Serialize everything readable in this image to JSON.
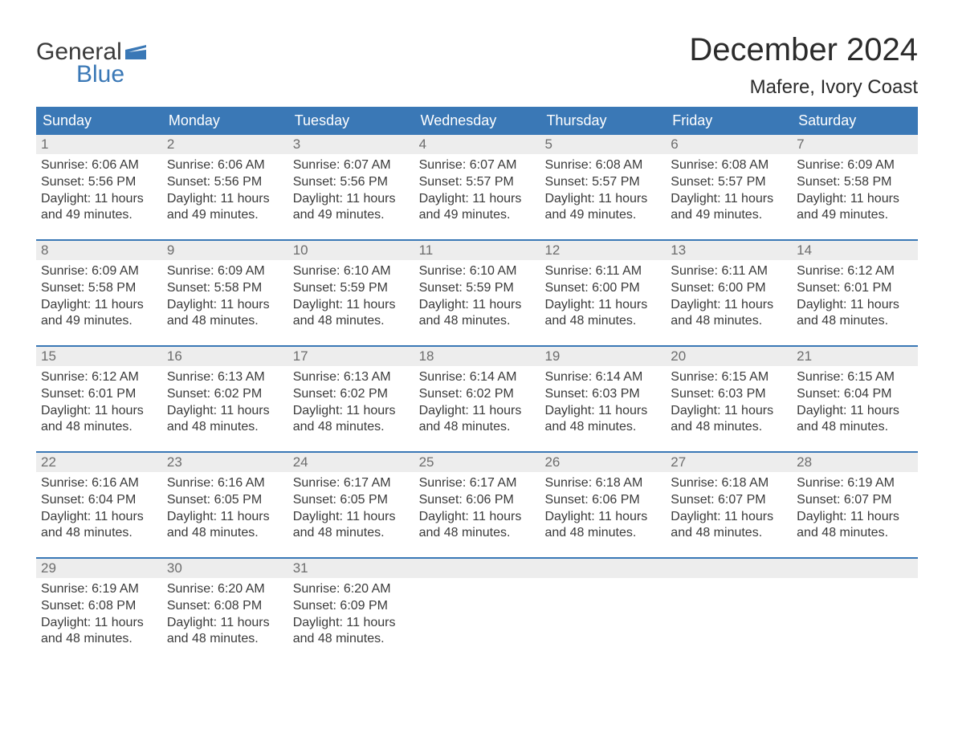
{
  "logo": {
    "word1": "General",
    "word2": "Blue",
    "flag_color": "#3a78b6",
    "text_gray": "#3a3a3a"
  },
  "title": "December 2024",
  "location": "Mafere, Ivory Coast",
  "colors": {
    "header_bg": "#3a78b6",
    "header_text": "#ffffff",
    "daynum_bg": "#ededed",
    "daynum_text": "#6d6d6d",
    "body_text": "#3a3a3a",
    "rule": "#3a78b6"
  },
  "day_names": [
    "Sunday",
    "Monday",
    "Tuesday",
    "Wednesday",
    "Thursday",
    "Friday",
    "Saturday"
  ],
  "weeks": [
    [
      {
        "n": "1",
        "sunrise": "6:06 AM",
        "sunset": "5:56 PM",
        "daylight": "11 hours and 49 minutes."
      },
      {
        "n": "2",
        "sunrise": "6:06 AM",
        "sunset": "5:56 PM",
        "daylight": "11 hours and 49 minutes."
      },
      {
        "n": "3",
        "sunrise": "6:07 AM",
        "sunset": "5:56 PM",
        "daylight": "11 hours and 49 minutes."
      },
      {
        "n": "4",
        "sunrise": "6:07 AM",
        "sunset": "5:57 PM",
        "daylight": "11 hours and 49 minutes."
      },
      {
        "n": "5",
        "sunrise": "6:08 AM",
        "sunset": "5:57 PM",
        "daylight": "11 hours and 49 minutes."
      },
      {
        "n": "6",
        "sunrise": "6:08 AM",
        "sunset": "5:57 PM",
        "daylight": "11 hours and 49 minutes."
      },
      {
        "n": "7",
        "sunrise": "6:09 AM",
        "sunset": "5:58 PM",
        "daylight": "11 hours and 49 minutes."
      }
    ],
    [
      {
        "n": "8",
        "sunrise": "6:09 AM",
        "sunset": "5:58 PM",
        "daylight": "11 hours and 49 minutes."
      },
      {
        "n": "9",
        "sunrise": "6:09 AM",
        "sunset": "5:58 PM",
        "daylight": "11 hours and 48 minutes."
      },
      {
        "n": "10",
        "sunrise": "6:10 AM",
        "sunset": "5:59 PM",
        "daylight": "11 hours and 48 minutes."
      },
      {
        "n": "11",
        "sunrise": "6:10 AM",
        "sunset": "5:59 PM",
        "daylight": "11 hours and 48 minutes."
      },
      {
        "n": "12",
        "sunrise": "6:11 AM",
        "sunset": "6:00 PM",
        "daylight": "11 hours and 48 minutes."
      },
      {
        "n": "13",
        "sunrise": "6:11 AM",
        "sunset": "6:00 PM",
        "daylight": "11 hours and 48 minutes."
      },
      {
        "n": "14",
        "sunrise": "6:12 AM",
        "sunset": "6:01 PM",
        "daylight": "11 hours and 48 minutes."
      }
    ],
    [
      {
        "n": "15",
        "sunrise": "6:12 AM",
        "sunset": "6:01 PM",
        "daylight": "11 hours and 48 minutes."
      },
      {
        "n": "16",
        "sunrise": "6:13 AM",
        "sunset": "6:02 PM",
        "daylight": "11 hours and 48 minutes."
      },
      {
        "n": "17",
        "sunrise": "6:13 AM",
        "sunset": "6:02 PM",
        "daylight": "11 hours and 48 minutes."
      },
      {
        "n": "18",
        "sunrise": "6:14 AM",
        "sunset": "6:02 PM",
        "daylight": "11 hours and 48 minutes."
      },
      {
        "n": "19",
        "sunrise": "6:14 AM",
        "sunset": "6:03 PM",
        "daylight": "11 hours and 48 minutes."
      },
      {
        "n": "20",
        "sunrise": "6:15 AM",
        "sunset": "6:03 PM",
        "daylight": "11 hours and 48 minutes."
      },
      {
        "n": "21",
        "sunrise": "6:15 AM",
        "sunset": "6:04 PM",
        "daylight": "11 hours and 48 minutes."
      }
    ],
    [
      {
        "n": "22",
        "sunrise": "6:16 AM",
        "sunset": "6:04 PM",
        "daylight": "11 hours and 48 minutes."
      },
      {
        "n": "23",
        "sunrise": "6:16 AM",
        "sunset": "6:05 PM",
        "daylight": "11 hours and 48 minutes."
      },
      {
        "n": "24",
        "sunrise": "6:17 AM",
        "sunset": "6:05 PM",
        "daylight": "11 hours and 48 minutes."
      },
      {
        "n": "25",
        "sunrise": "6:17 AM",
        "sunset": "6:06 PM",
        "daylight": "11 hours and 48 minutes."
      },
      {
        "n": "26",
        "sunrise": "6:18 AM",
        "sunset": "6:06 PM",
        "daylight": "11 hours and 48 minutes."
      },
      {
        "n": "27",
        "sunrise": "6:18 AM",
        "sunset": "6:07 PM",
        "daylight": "11 hours and 48 minutes."
      },
      {
        "n": "28",
        "sunrise": "6:19 AM",
        "sunset": "6:07 PM",
        "daylight": "11 hours and 48 minutes."
      }
    ],
    [
      {
        "n": "29",
        "sunrise": "6:19 AM",
        "sunset": "6:08 PM",
        "daylight": "11 hours and 48 minutes."
      },
      {
        "n": "30",
        "sunrise": "6:20 AM",
        "sunset": "6:08 PM",
        "daylight": "11 hours and 48 minutes."
      },
      {
        "n": "31",
        "sunrise": "6:20 AM",
        "sunset": "6:09 PM",
        "daylight": "11 hours and 48 minutes."
      },
      null,
      null,
      null,
      null
    ]
  ],
  "labels": {
    "sunrise": "Sunrise: ",
    "sunset": "Sunset: ",
    "daylight": "Daylight: "
  }
}
